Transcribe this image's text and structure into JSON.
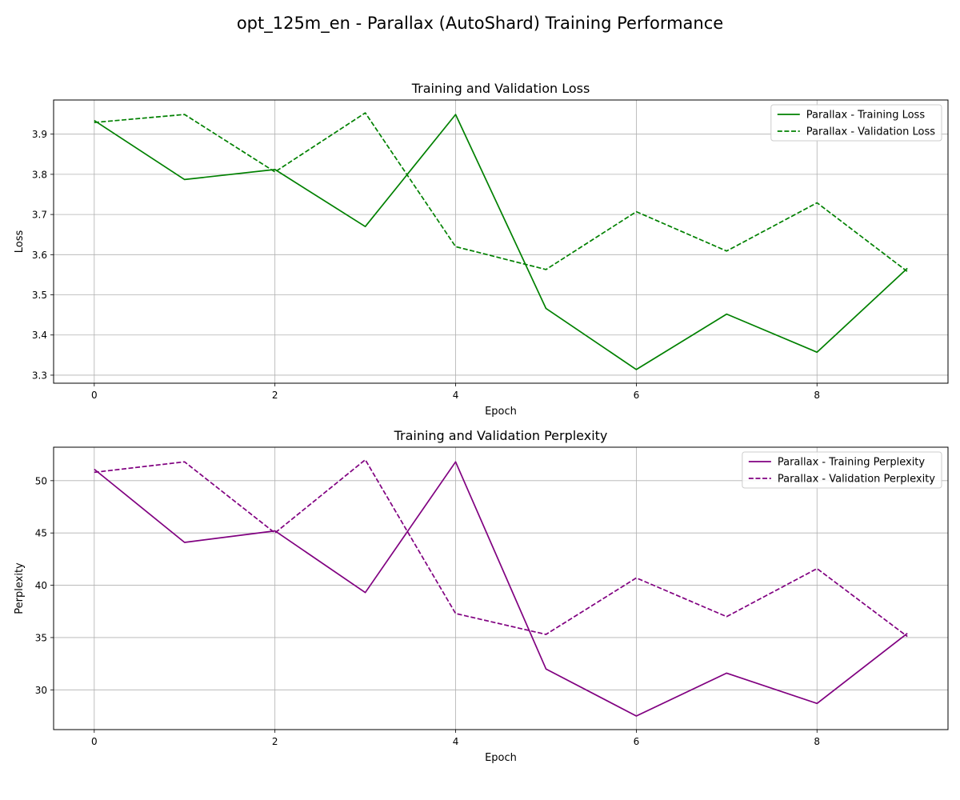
{
  "figure": {
    "suptitle": "opt_125m_en - Parallax (AutoShard) Training Performance"
  },
  "colors": {
    "loss": "#008000",
    "perplexity": "#800080",
    "grid": "#b0b0b0",
    "axis": "#000000"
  },
  "chart_data": [
    {
      "type": "line",
      "title": "Training and Validation Loss",
      "xlabel": "Epoch",
      "ylabel": "Loss",
      "xlim": [
        -0.45,
        9.45
      ],
      "ylim": [
        3.28,
        3.985
      ],
      "xticks": [
        0,
        2,
        4,
        6,
        8
      ],
      "yticks": [
        3.3,
        3.4,
        3.5,
        3.6,
        3.7,
        3.8,
        3.9
      ],
      "ytick_labels": [
        "3.3",
        "3.4",
        "3.5",
        "3.6",
        "3.7",
        "3.8",
        "3.9"
      ],
      "grid": true,
      "legend_position": "top-right",
      "x": [
        0,
        1,
        2,
        3,
        4,
        5,
        6,
        7,
        8,
        9
      ],
      "series": [
        {
          "name": "Parallax - Training Loss",
          "style": "solid",
          "values": [
            3.934,
            3.787,
            3.812,
            3.67,
            3.949,
            3.466,
            3.314,
            3.452,
            3.357,
            3.566
          ]
        },
        {
          "name": "Parallax - Validation Loss",
          "style": "dashed",
          "values": [
            3.929,
            3.949,
            3.806,
            3.953,
            3.62,
            3.563,
            3.707,
            3.609,
            3.729,
            3.558
          ]
        }
      ]
    },
    {
      "type": "line",
      "title": "Training and Validation Perplexity",
      "xlabel": "Epoch",
      "ylabel": "Perplexity",
      "xlim": [
        -0.45,
        9.45
      ],
      "ylim": [
        26.2,
        53.2
      ],
      "xticks": [
        0,
        2,
        4,
        6,
        8
      ],
      "yticks": [
        30,
        35,
        40,
        45,
        50
      ],
      "ytick_labels": [
        "30",
        "35",
        "40",
        "45",
        "50"
      ],
      "grid": true,
      "legend_position": "top-right",
      "x": [
        0,
        1,
        2,
        3,
        4,
        5,
        6,
        7,
        8,
        9
      ],
      "series": [
        {
          "name": "Parallax - Training Perplexity",
          "style": "solid",
          "values": [
            51.1,
            44.1,
            45.2,
            39.3,
            51.8,
            32.0,
            27.5,
            31.6,
            28.7,
            35.4
          ]
        },
        {
          "name": "Parallax - Validation Perplexity",
          "style": "dashed",
          "values": [
            50.8,
            51.8,
            45.0,
            52.0,
            37.3,
            35.3,
            40.7,
            37.0,
            41.6,
            35.1
          ]
        }
      ]
    }
  ]
}
